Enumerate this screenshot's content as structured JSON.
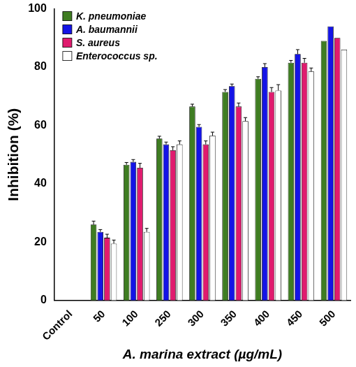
{
  "chart_data": {
    "type": "bar",
    "x_label": "A. marina extract (µg/mL)",
    "y_label": "Inhibition (%)",
    "categories": [
      "Control",
      "50",
      "100",
      "250",
      "300",
      "350",
      "400",
      "450",
      "500"
    ],
    "series": [
      {
        "name": "K. pneumoniae",
        "color": "#3f7d22",
        "values": [
          0,
          26,
          46.5,
          55.5,
          66.5,
          71.5,
          76,
          81.5,
          89
        ],
        "errors": [
          0,
          1.2,
          0.8,
          0.8,
          0.8,
          0.8,
          0.7,
          0.8,
          0
        ]
      },
      {
        "name": "A. baumannii",
        "color": "#1414e6",
        "values": [
          0,
          23.5,
          47.5,
          53.5,
          59.5,
          73.5,
          80,
          84.5,
          94
        ],
        "errors": [
          0,
          0.8,
          0.8,
          0.8,
          0.8,
          0.7,
          1.2,
          1.5,
          0
        ]
      },
      {
        "name": "S. aureus",
        "color": "#e01b6e",
        "values": [
          0,
          21.5,
          45.5,
          51.5,
          53.5,
          66.5,
          71.5,
          81.5,
          90
        ],
        "errors": [
          0,
          1.2,
          1.5,
          1.2,
          1.2,
          1.2,
          1.5,
          1.5,
          0
        ]
      },
      {
        "name": "Enterococcus sp.",
        "color": "#ffffff",
        "values": [
          0,
          19.5,
          23.5,
          53.5,
          56.5,
          61.5,
          72,
          78.5,
          86
        ],
        "errors": [
          0,
          1.2,
          1.2,
          1.2,
          1.2,
          1.2,
          2,
          1.2,
          0
        ]
      }
    ],
    "ylim": [
      0,
      100
    ],
    "yticks": [
      0,
      20,
      40,
      60,
      80,
      100
    ],
    "grid": false,
    "legend": "upper left"
  }
}
